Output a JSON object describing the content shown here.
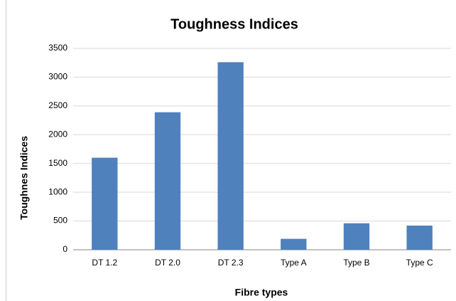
{
  "chart_data": {
    "type": "bar",
    "title": "Toughness Indices",
    "x_label": "Fibre types",
    "y_label": "Toughnes Indices",
    "categories": [
      "DT 1.2",
      "DT 2.0",
      "DT 2.3",
      "Type A",
      "Type B",
      "Type C"
    ],
    "values": [
      1600,
      2390,
      3260,
      190,
      460,
      420
    ],
    "color": "#4f81bd",
    "ylim": [
      0,
      3500
    ],
    "yticks": [
      0,
      500,
      1000,
      1500,
      2000,
      2500,
      3000,
      3500
    ],
    "grid": true
  }
}
